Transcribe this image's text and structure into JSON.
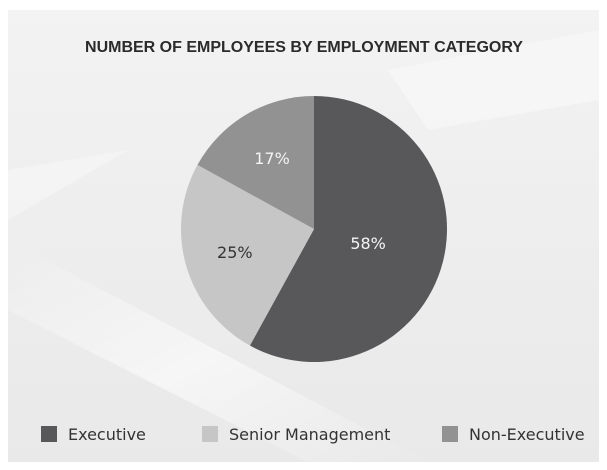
{
  "chart_data": {
    "type": "pie",
    "title": "NUMBER OF EMPLOYEES BY EMPLOYMENT CATEGORY",
    "categories": [
      "Executive",
      "Senior Management",
      "Non-Executive"
    ],
    "values": [
      58,
      25,
      17
    ],
    "value_labels": [
      "58%",
      "25%",
      "17%"
    ],
    "colors": [
      "#58585a",
      "#c6c6c6",
      "#929292"
    ],
    "start_angle_deg": 0,
    "direction": "clockwise",
    "legend_position": "bottom"
  }
}
